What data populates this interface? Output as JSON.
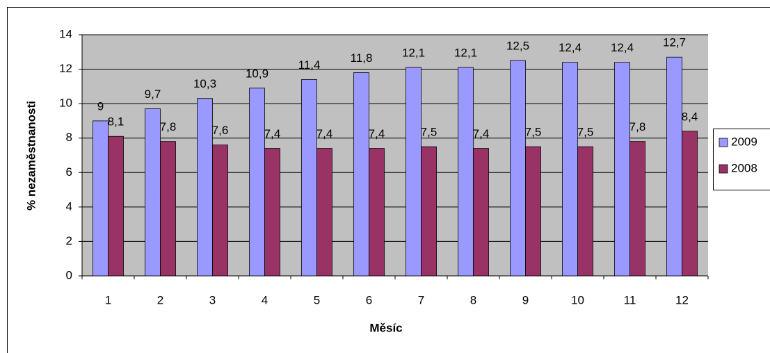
{
  "chart_data": {
    "type": "bar",
    "x_label": "Měsíc",
    "y_label": "% nezaměstnanosti",
    "categories": [
      "1",
      "2",
      "3",
      "4",
      "5",
      "6",
      "7",
      "8",
      "9",
      "10",
      "11",
      "12"
    ],
    "series": [
      {
        "name": "2009",
        "color": "#9999ff",
        "values": [
          9,
          9.7,
          10.3,
          10.9,
          11.4,
          11.8,
          12.1,
          12.1,
          12.5,
          12.4,
          12.4,
          12.7
        ],
        "value_labels": [
          "9",
          "9,7",
          "10,3",
          "10,9",
          "11,4",
          "11,8",
          "12,1",
          "12,1",
          "12,5",
          "12,4",
          "12,4",
          "12,7"
        ]
      },
      {
        "name": "2008",
        "color": "#993366",
        "values": [
          8.1,
          7.8,
          7.6,
          7.4,
          7.4,
          7.4,
          7.5,
          7.4,
          7.5,
          7.5,
          7.8,
          8.4
        ],
        "value_labels": [
          "8,1",
          "7,8",
          "7,6",
          "7,4",
          "7,4",
          "7,4",
          "7,5",
          "7,4",
          "7,5",
          "7,5",
          "7,8",
          "8,4"
        ]
      }
    ],
    "ylim": [
      0,
      14
    ],
    "yticks": [
      0,
      2,
      4,
      6,
      8,
      10,
      12,
      14
    ],
    "grid": true,
    "plot_background": "#c0c0c0",
    "legend": "right"
  }
}
